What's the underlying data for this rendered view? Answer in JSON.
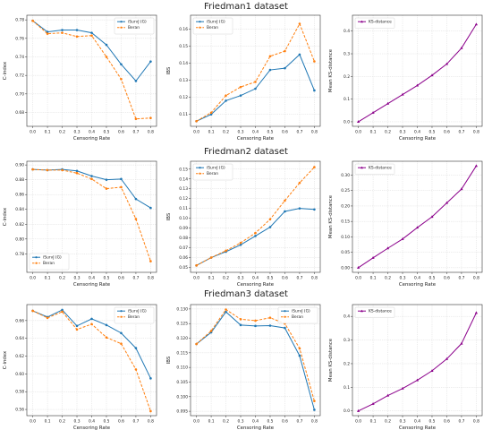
{
  "colors": {
    "series_blue": "#1f77b4",
    "series_orange": "#ff7f0e",
    "ks_purple": "#8b008b",
    "grid": "#d9d9d9",
    "axis": "#333333"
  },
  "rows": [
    {
      "title": "Friedman1 dataset"
    },
    {
      "title": "Friedman2 dataset"
    },
    {
      "title": "Friedman3 dataset"
    }
  ],
  "chart_data": [
    {
      "type": "line",
      "row": 0,
      "col": 0,
      "title": "",
      "xlabel": "Censoring Rate",
      "ylabel": "C-index",
      "x": [
        0.0,
        0.1,
        0.2,
        0.3,
        0.4,
        0.5,
        0.6,
        0.7,
        0.8
      ],
      "xticks": [
        "0.0",
        "0.1",
        "0.2",
        "0.3",
        "0.4",
        "0.5",
        "0.6",
        "0.7",
        "0.8"
      ],
      "ylim": [
        0.665,
        0.785
      ],
      "yticks": [
        0.68,
        0.7,
        0.72,
        0.74,
        0.76,
        0.78
      ],
      "ytick_labels": [
        "0.68",
        "0.70",
        "0.72",
        "0.74",
        "0.76",
        "0.78"
      ],
      "grid": true,
      "legend": "top-right",
      "series": [
        {
          "name": "iSurvJ (G)",
          "color": "#1f77b4",
          "style": "solid",
          "marker": "circle",
          "values": [
            0.779,
            0.767,
            0.769,
            0.769,
            0.766,
            0.753,
            0.732,
            0.714,
            0.735
          ]
        },
        {
          "name": "Beran",
          "color": "#ff7f0e",
          "style": "dashed",
          "marker": "circle",
          "values": [
            0.779,
            0.765,
            0.766,
            0.762,
            0.763,
            0.74,
            0.716,
            0.673,
            0.674
          ]
        }
      ]
    },
    {
      "type": "line",
      "row": 0,
      "col": 1,
      "title": "",
      "xlabel": "Censoring Rate",
      "ylabel": "IBS",
      "x": [
        0.0,
        0.1,
        0.2,
        0.3,
        0.4,
        0.5,
        0.6,
        0.7,
        0.8
      ],
      "xticks": [
        "0.0",
        "0.1",
        "0.2",
        "0.3",
        "0.4",
        "0.5",
        "0.6",
        "0.7",
        "0.8"
      ],
      "ylim": [
        0.103,
        0.168
      ],
      "yticks": [
        0.11,
        0.12,
        0.13,
        0.14,
        0.15,
        0.16
      ],
      "ytick_labels": [
        "0.11",
        "0.12",
        "0.13",
        "0.14",
        "0.15",
        "0.16"
      ],
      "grid": true,
      "legend": "top-left",
      "series": [
        {
          "name": "iSurvJ (G)",
          "color": "#1f77b4",
          "style": "solid",
          "marker": "circle",
          "values": [
            0.106,
            0.11,
            0.118,
            0.121,
            0.125,
            0.136,
            0.137,
            0.145,
            0.124
          ]
        },
        {
          "name": "Beran",
          "color": "#ff7f0e",
          "style": "dashed",
          "marker": "circle",
          "values": [
            0.106,
            0.111,
            0.121,
            0.126,
            0.129,
            0.144,
            0.147,
            0.163,
            0.141
          ]
        }
      ]
    },
    {
      "type": "line",
      "row": 0,
      "col": 2,
      "title": "",
      "xlabel": "Censoring Rate",
      "ylabel": "Mean KS-distance",
      "x": [
        0.0,
        0.1,
        0.2,
        0.3,
        0.4,
        0.5,
        0.6,
        0.7,
        0.8
      ],
      "xticks": [
        "0.0",
        "0.1",
        "0.2",
        "0.3",
        "0.4",
        "0.5",
        "0.6",
        "0.7",
        "0.8"
      ],
      "ylim": [
        -0.02,
        0.47
      ],
      "yticks": [
        0.0,
        0.1,
        0.2,
        0.3,
        0.4
      ],
      "ytick_labels": [
        "0.0",
        "0.1",
        "0.2",
        "0.3",
        "0.4"
      ],
      "grid": true,
      "legend": "top-left",
      "series": [
        {
          "name": "KS-distance",
          "color": "#8b008b",
          "style": "solid",
          "marker": "triangle",
          "values": [
            0.0,
            0.04,
            0.08,
            0.12,
            0.16,
            0.205,
            0.255,
            0.325,
            0.43
          ]
        }
      ]
    },
    {
      "type": "line",
      "row": 1,
      "col": 0,
      "title": "",
      "xlabel": "Censoring Rate",
      "ylabel": "C-index",
      "x": [
        0.0,
        0.1,
        0.2,
        0.3,
        0.4,
        0.5,
        0.6,
        0.7,
        0.8
      ],
      "xticks": [
        "0.0",
        "0.1",
        "0.2",
        "0.3",
        "0.4",
        "0.5",
        "0.6",
        "0.7",
        "0.8"
      ],
      "ylim": [
        0.755,
        0.905
      ],
      "yticks": [
        0.78,
        0.8,
        0.82,
        0.84,
        0.86,
        0.88,
        0.9
      ],
      "ytick_labels": [
        "0.78",
        "0.80",
        "0.82",
        "0.84",
        "0.86",
        "0.88",
        "0.90"
      ],
      "grid": true,
      "legend": "bottom-left",
      "series": [
        {
          "name": "iSurvJ (G)",
          "color": "#1f77b4",
          "style": "solid",
          "marker": "circle",
          "values": [
            0.894,
            0.893,
            0.894,
            0.892,
            0.885,
            0.88,
            0.881,
            0.854,
            0.842
          ]
        },
        {
          "name": "Beran",
          "color": "#ff7f0e",
          "style": "dashed",
          "marker": "circle",
          "values": [
            0.894,
            0.893,
            0.893,
            0.889,
            0.881,
            0.868,
            0.87,
            0.827,
            0.77
          ]
        }
      ]
    },
    {
      "type": "line",
      "row": 1,
      "col": 1,
      "title": "",
      "xlabel": "Censoring Rate",
      "ylabel": "IBS",
      "x": [
        0.0,
        0.1,
        0.2,
        0.3,
        0.4,
        0.5,
        0.6,
        0.7,
        0.8
      ],
      "xticks": [
        "0.0",
        "0.1",
        "0.2",
        "0.3",
        "0.4",
        "0.5",
        "0.6",
        "0.7",
        "0.8"
      ],
      "ylim": [
        0.045,
        0.158
      ],
      "yticks": [
        0.05,
        0.06,
        0.07,
        0.08,
        0.09,
        0.1,
        0.11,
        0.12,
        0.13,
        0.14,
        0.15
      ],
      "ytick_labels": [
        "0.05",
        "0.06",
        "0.07",
        "0.08",
        "0.09",
        "0.10",
        "0.11",
        "0.12",
        "0.13",
        "0.14",
        "0.15"
      ],
      "grid": true,
      "legend": "top-left",
      "series": [
        {
          "name": "iSurvJ (G)",
          "color": "#1f77b4",
          "style": "solid",
          "marker": "circle",
          "values": [
            0.052,
            0.06,
            0.066,
            0.073,
            0.082,
            0.091,
            0.107,
            0.11,
            0.109
          ]
        },
        {
          "name": "Beran",
          "color": "#ff7f0e",
          "style": "dashed",
          "marker": "circle",
          "values": [
            0.052,
            0.06,
            0.067,
            0.075,
            0.085,
            0.099,
            0.118,
            0.136,
            0.152
          ]
        }
      ]
    },
    {
      "type": "line",
      "row": 1,
      "col": 2,
      "title": "",
      "xlabel": "Censoring Rate",
      "ylabel": "Mean KS-distance",
      "x": [
        0.0,
        0.1,
        0.2,
        0.3,
        0.4,
        0.5,
        0.6,
        0.7,
        0.8
      ],
      "xticks": [
        "0.0",
        "0.1",
        "0.2",
        "0.3",
        "0.4",
        "0.5",
        "0.6",
        "0.7",
        "0.8"
      ],
      "ylim": [
        -0.015,
        0.345
      ],
      "yticks": [
        0.0,
        0.05,
        0.1,
        0.15,
        0.2,
        0.25,
        0.3
      ],
      "ytick_labels": [
        "0.00",
        "0.05",
        "0.10",
        "0.15",
        "0.20",
        "0.25",
        "0.30"
      ],
      "grid": true,
      "legend": "top-left",
      "series": [
        {
          "name": "KS-distance",
          "color": "#8b008b",
          "style": "solid",
          "marker": "triangle",
          "values": [
            0.0,
            0.032,
            0.063,
            0.093,
            0.13,
            0.165,
            0.21,
            0.255,
            0.33
          ]
        }
      ]
    },
    {
      "type": "line",
      "row": 2,
      "col": 0,
      "title": "",
      "xlabel": "Censoring Rate",
      "ylabel": "C-index",
      "x": [
        0.0,
        0.1,
        0.2,
        0.3,
        0.4,
        0.5,
        0.6,
        0.7,
        0.8
      ],
      "xticks": [
        "0.0",
        "0.1",
        "0.2",
        "0.3",
        "0.4",
        "0.5",
        "0.6",
        "0.7",
        "0.8"
      ],
      "ylim": [
        0.553,
        0.678
      ],
      "yticks": [
        0.56,
        0.58,
        0.6,
        0.62,
        0.64,
        0.66
      ],
      "ytick_labels": [
        "0.56",
        "0.58",
        "0.60",
        "0.62",
        "0.64",
        "0.66"
      ],
      "grid": true,
      "legend": "top-right",
      "series": [
        {
          "name": "iSurvJ (G)",
          "color": "#1f77b4",
          "style": "solid",
          "marker": "circle",
          "values": [
            0.671,
            0.664,
            0.672,
            0.654,
            0.662,
            0.655,
            0.646,
            0.629,
            0.595
          ]
        },
        {
          "name": "Beran",
          "color": "#ff7f0e",
          "style": "dashed",
          "marker": "circle",
          "values": [
            0.671,
            0.663,
            0.67,
            0.65,
            0.656,
            0.641,
            0.634,
            0.605,
            0.558
          ]
        }
      ]
    },
    {
      "type": "line",
      "row": 2,
      "col": 1,
      "title": "",
      "xlabel": "Censoring Rate",
      "ylabel": "IBS",
      "x": [
        0.0,
        0.1,
        0.2,
        0.3,
        0.4,
        0.5,
        0.6,
        0.7,
        0.8
      ],
      "xticks": [
        "0.0",
        "0.1",
        "0.2",
        "0.3",
        "0.4",
        "0.5",
        "0.6",
        "0.7",
        "0.8"
      ],
      "ylim": [
        0.0935,
        0.1315
      ],
      "yticks": [
        0.095,
        0.1,
        0.105,
        0.11,
        0.115,
        0.12,
        0.125,
        0.13
      ],
      "ytick_labels": [
        "0.095",
        "0.100",
        "0.105",
        "0.110",
        "0.115",
        "0.120",
        "0.125",
        "0.130"
      ],
      "grid": true,
      "legend": "top-right",
      "series": [
        {
          "name": "iSurvJ (G)",
          "color": "#1f77b4",
          "style": "solid",
          "marker": "circle",
          "values": [
            0.118,
            0.122,
            0.129,
            0.1245,
            0.1242,
            0.1243,
            0.1235,
            0.114,
            0.0955
          ]
        },
        {
          "name": "Beran",
          "color": "#ff7f0e",
          "style": "dashed",
          "marker": "circle",
          "values": [
            0.118,
            0.1225,
            0.1298,
            0.1265,
            0.126,
            0.127,
            0.125,
            0.1165,
            0.0985
          ]
        }
      ]
    },
    {
      "type": "line",
      "row": 2,
      "col": 2,
      "title": "",
      "xlabel": "Censoring Rate",
      "ylabel": "Mean KS-distance",
      "x": [
        0.0,
        0.1,
        0.2,
        0.3,
        0.4,
        0.5,
        0.6,
        0.7,
        0.8
      ],
      "xticks": [
        "0.0",
        "0.1",
        "0.2",
        "0.3",
        "0.4",
        "0.5",
        "0.6",
        "0.7",
        "0.8"
      ],
      "ylim": [
        -0.02,
        0.45
      ],
      "yticks": [
        0.0,
        0.1,
        0.2,
        0.3,
        0.4
      ],
      "ytick_labels": [
        "0.0",
        "0.1",
        "0.2",
        "0.3",
        "0.4"
      ],
      "grid": true,
      "legend": "top-left",
      "series": [
        {
          "name": "KS-distance",
          "color": "#8b008b",
          "style": "solid",
          "marker": "triangle",
          "values": [
            0.0,
            0.03,
            0.065,
            0.095,
            0.13,
            0.17,
            0.22,
            0.285,
            0.415
          ]
        }
      ]
    }
  ]
}
